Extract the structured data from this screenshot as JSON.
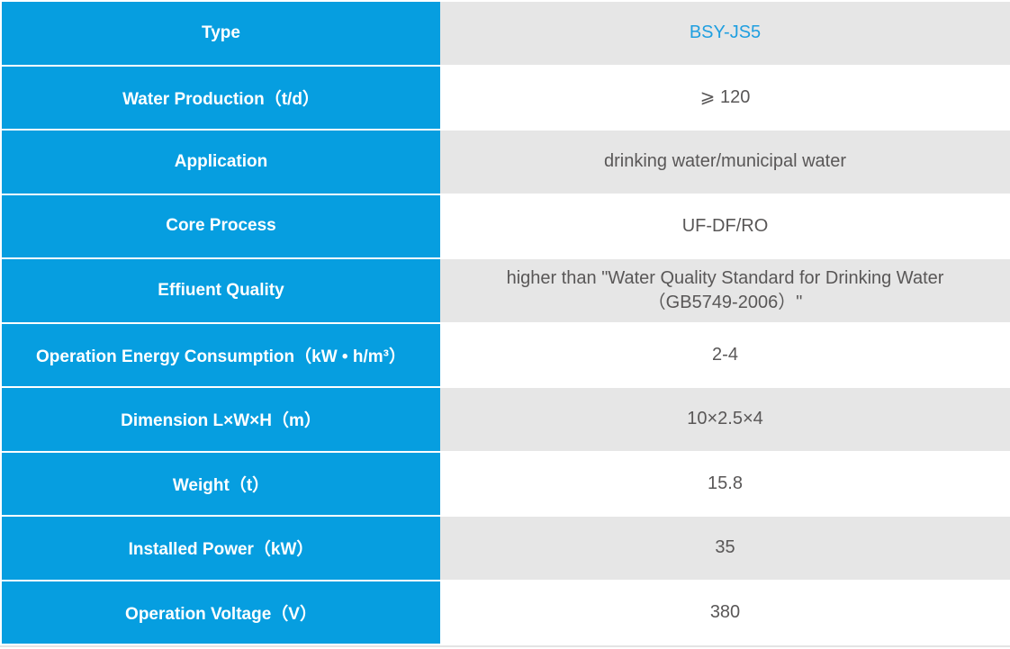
{
  "colors": {
    "accent_blue": "#069EE0",
    "alt_row_gray": "#E6E6E6",
    "value_text_gray": "#595757",
    "brand_value_blue": "#1F9FE0",
    "label_text": "#FFFFFF"
  },
  "chart_data": {
    "type": "table",
    "layout": {
      "label_column_bg": "#069EE0",
      "value_rows_alternate": [
        "#E6E6E6",
        "#FFFFFF"
      ],
      "gridlines": "2px white separators"
    },
    "rows": [
      {
        "label": "Type",
        "value": "BSY-JS5"
      },
      {
        "label": "Water Production（t/d）",
        "value": "⩾ 120"
      },
      {
        "label": "Application",
        "value": "drinking water/municipal water"
      },
      {
        "label": "Core Process",
        "value": "UF-DF/RO"
      },
      {
        "label": "Effiuent Quality",
        "value": "higher than \"Water Quality Standard for Drinking Water\n（GB5749-2006）\""
      },
      {
        "label": "Operation Energy Consumption（kW • h/m³）",
        "value": "2-4"
      },
      {
        "label": "Dimension L×W×H（m）",
        "value": "10×2.5×4"
      },
      {
        "label": "Weight（t）",
        "value": "15.8"
      },
      {
        "label": "Installed Power（kW）",
        "value": "35"
      },
      {
        "label": "Operation Voltage（V）",
        "value": "380"
      }
    ]
  }
}
